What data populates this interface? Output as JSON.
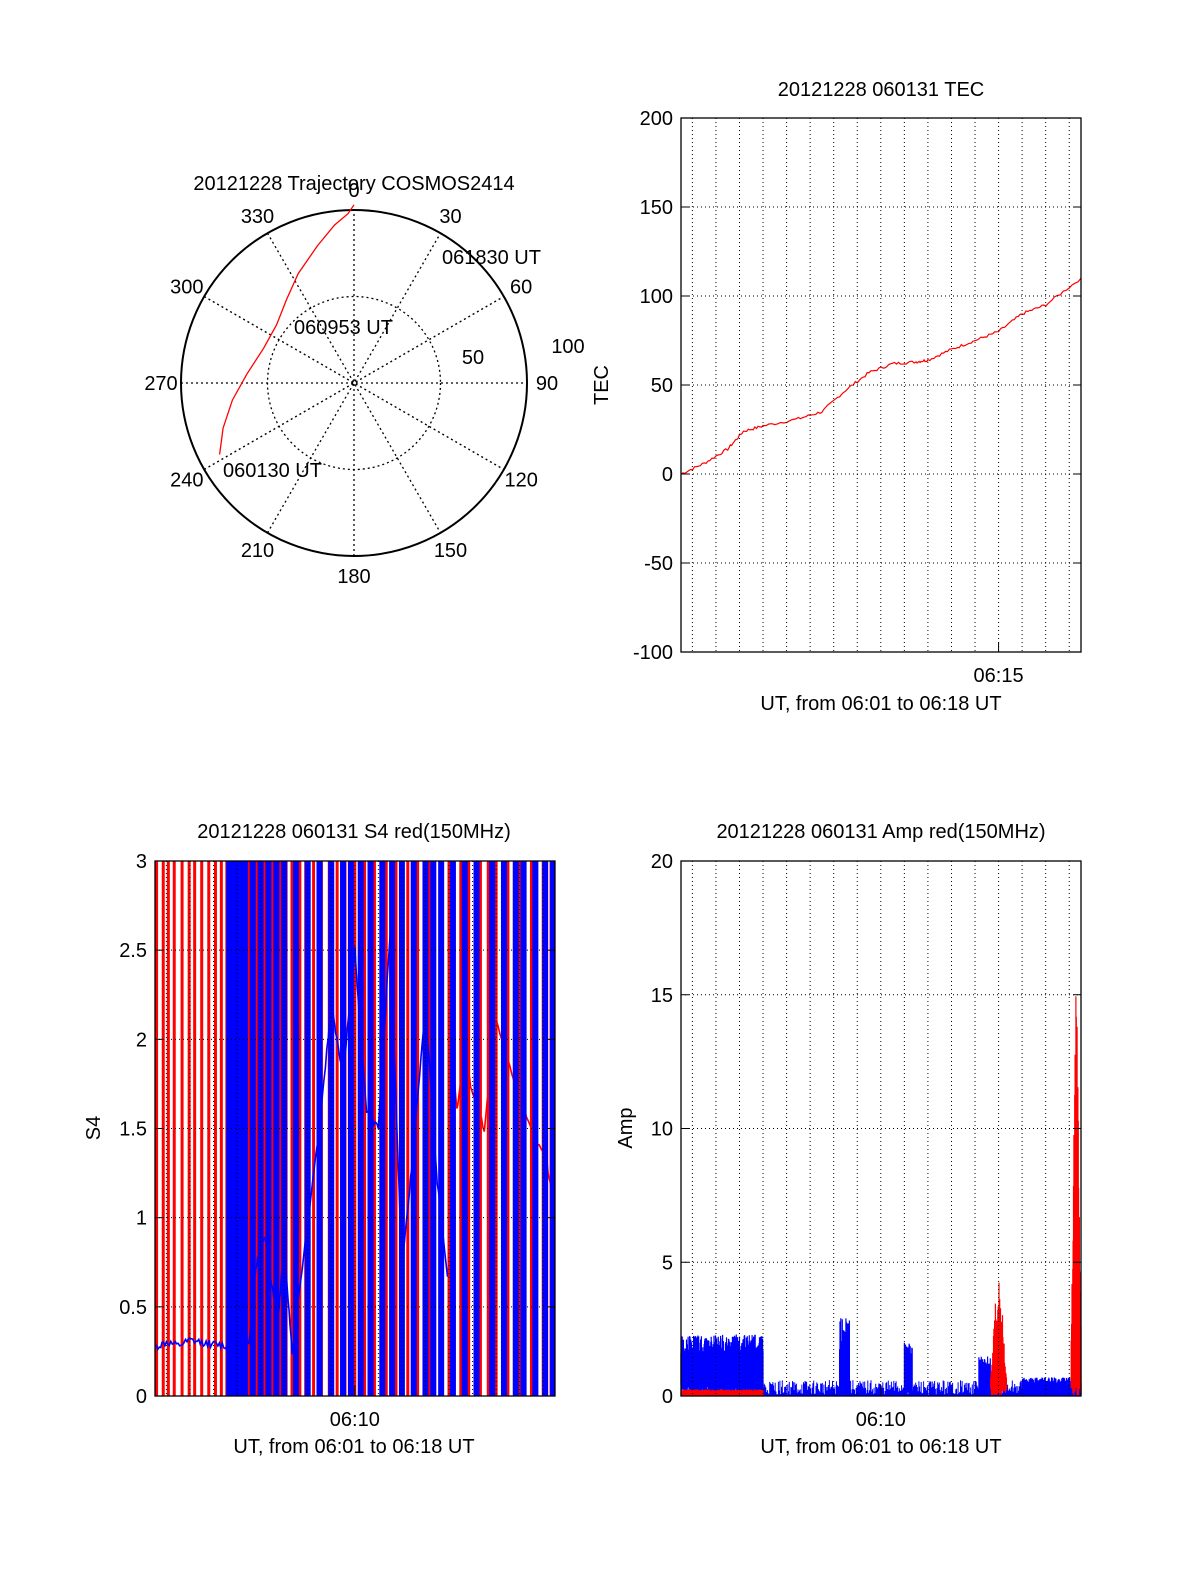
{
  "colors": {
    "red": "#ff0000",
    "blue": "#0000ff",
    "axis": "#000000"
  },
  "chart_data": [
    {
      "type": "polar-trajectory",
      "title": "20121228 Trajectory COSMOS2414",
      "azimuth_labels": [
        "0",
        "30",
        "60",
        "90",
        "120",
        "150",
        "180",
        "210",
        "240",
        "270",
        "300",
        "330"
      ],
      "radial_labels": [
        "50",
        "100"
      ],
      "rlim": [
        0,
        100
      ],
      "trajectory": [
        {
          "az": 242,
          "r": 88
        },
        {
          "az": 251,
          "r": 80
        },
        {
          "az": 262,
          "r": 71
        },
        {
          "az": 275,
          "r": 62
        },
        {
          "az": 291,
          "r": 56
        },
        {
          "az": 307,
          "r": 56
        },
        {
          "az": 321,
          "r": 62
        },
        {
          "az": 333,
          "r": 71
        },
        {
          "az": 345,
          "r": 82
        },
        {
          "az": 353,
          "r": 92
        },
        {
          "az": 358,
          "r": 98
        },
        {
          "az": 360,
          "r": 103
        }
      ],
      "annotations": [
        {
          "text": "061830 UT",
          "az": 26,
          "r": 100
        },
        {
          "text": "060953 UT",
          "az": 342,
          "r": 37
        },
        {
          "text": "060130 UT",
          "az": 244,
          "r": 78
        }
      ]
    },
    {
      "type": "line",
      "title": "20121228 060131 TEC",
      "ylabel": "TEC",
      "xlabel": "UT, from 06:01 to 06:18 UT",
      "xlim": [
        "06:01:31",
        "06:18:30"
      ],
      "ylim": [
        -100,
        200
      ],
      "yticks": [
        -100,
        -50,
        0,
        50,
        100,
        150,
        200
      ],
      "xtick_labels": [
        {
          "t": "06:15:00",
          "label": "06:15"
        }
      ],
      "grid": true,
      "series": [
        {
          "color": "#ff0000",
          "points": [
            [
              "06:01:31",
              0
            ],
            [
              "06:02:30",
              6
            ],
            [
              "06:03:30",
              14
            ],
            [
              "06:04:10",
              24
            ],
            [
              "06:05:00",
              27
            ],
            [
              "06:06:30",
              31
            ],
            [
              "06:07:30",
              35
            ],
            [
              "06:08:30",
              47
            ],
            [
              "06:09:30",
              57
            ],
            [
              "06:10:30",
              62
            ],
            [
              "06:11:30",
              63
            ],
            [
              "06:12:00",
              64
            ],
            [
              "06:13:00",
              70
            ],
            [
              "06:14:00",
              75
            ],
            [
              "06:15:00",
              80
            ],
            [
              "06:16:00",
              90
            ],
            [
              "06:17:00",
              95
            ],
            [
              "06:18:30",
              110
            ]
          ]
        }
      ]
    },
    {
      "type": "line",
      "title": "20121228 060131 S4 red(150MHz)",
      "ylabel": "S4",
      "xlabel": "UT, from 06:01 to 06:18 UT",
      "xlim": [
        "06:01:31",
        "06:18:30"
      ],
      "ylim": [
        0,
        3
      ],
      "yticks": [
        "0",
        "0.5",
        "1",
        "1.5",
        "2",
        "2.5",
        "3"
      ],
      "xtick_labels": [
        {
          "t": "06:10:00",
          "label": "06:10"
        }
      ],
      "grid": true,
      "series": [
        {
          "color": "#ff0000",
          "spikes": [
            "06:01:35",
            "06:01:52",
            "06:02:05",
            "06:02:20",
            "06:02:40",
            "06:02:58",
            "06:03:12",
            "06:03:30",
            "06:03:48",
            "06:04:05",
            "06:04:20",
            "06:04:34",
            "06:05:30",
            "06:05:50",
            "06:06:10",
            "06:06:30",
            "06:06:50",
            "06:07:05",
            "06:07:20",
            "06:07:40",
            "06:07:55",
            "06:08:15",
            "06:08:35",
            "06:08:55",
            "06:09:15",
            "06:09:35",
            "06:10:00",
            "06:10:25",
            "06:10:50",
            "06:11:20",
            "06:11:45",
            "06:12:15",
            "06:12:40",
            "06:13:10",
            "06:14:00",
            "06:14:30",
            "06:14:50",
            "06:15:20",
            "06:15:40",
            "06:16:00",
            "06:16:30",
            "06:17:00",
            "06:17:30",
            "06:18:00",
            "06:18:20"
          ],
          "points": [
            [
              "06:14:00",
              2.2
            ],
            [
              "06:14:20",
              1.6
            ],
            [
              "06:14:40",
              1.9
            ],
            [
              "06:15:00",
              1.7
            ],
            [
              "06:15:30",
              1.5
            ],
            [
              "06:16:00",
              2.1
            ],
            [
              "06:16:40",
              1.8
            ],
            [
              "06:17:30",
              1.5
            ],
            [
              "06:18:10",
              1.3
            ],
            [
              "06:18:30",
              1.0
            ]
          ]
        },
        {
          "color": "#0000ff",
          "spikes": [
            "06:04:40",
            "06:04:50",
            "06:05:00",
            "06:05:10",
            "06:05:20",
            "06:05:40",
            "06:06:00",
            "06:06:20",
            "06:06:40",
            "06:07:00",
            "06:07:30",
            "06:08:00",
            "06:08:30",
            "06:09:00",
            "06:09:30",
            "06:09:50",
            "06:10:15",
            "06:10:40",
            "06:11:10",
            "06:11:35",
            "06:12:00",
            "06:12:30",
            "06:13:00",
            "06:13:20",
            "06:13:40",
            "06:14:10",
            "06:14:40",
            "06:15:10",
            "06:15:50",
            "06:16:20",
            "06:16:50",
            "06:17:10",
            "06:17:40",
            "06:18:05",
            "06:18:25"
          ],
          "points": [
            [
              "06:01:31",
              0.27
            ],
            [
              "06:02:00",
              0.3
            ],
            [
              "06:02:30",
              0.28
            ],
            [
              "06:03:00",
              0.31
            ],
            [
              "06:03:30",
              0.3
            ],
            [
              "06:04:00",
              0.29
            ],
            [
              "06:04:30",
              0.28
            ],
            [
              "06:05:30",
              0.3
            ],
            [
              "06:05:50",
              0.75
            ],
            [
              "06:06:10",
              0.9
            ],
            [
              "06:06:30",
              0.6
            ],
            [
              "06:06:45",
              0.45
            ],
            [
              "06:07:00",
              0.85
            ],
            [
              "06:07:20",
              0.25
            ],
            [
              "06:08:30",
              1.5
            ],
            [
              "06:09:00",
              2.2
            ],
            [
              "06:09:30",
              1.8
            ],
            [
              "06:10:00",
              2.5
            ],
            [
              "06:10:30",
              1.6
            ],
            [
              "06:11:00",
              1.5
            ],
            [
              "06:11:30",
              2.6
            ],
            [
              "06:12:00",
              0.7
            ],
            [
              "06:12:30",
              1.4
            ],
            [
              "06:13:00",
              2.2
            ],
            [
              "06:13:30",
              1.2
            ],
            [
              "06:14:00",
              0.6
            ]
          ]
        }
      ]
    },
    {
      "type": "line",
      "title": "20121228 060131 Amp red(150MHz)",
      "ylabel": "Amp",
      "xlabel": "UT, from 06:01 to 06:18 UT",
      "xlim": [
        "06:01:31",
        "06:18:30"
      ],
      "ylim": [
        0,
        20
      ],
      "yticks": [
        0,
        5,
        10,
        15,
        20
      ],
      "xtick_labels": [
        {
          "t": "06:10:00",
          "label": "06:10"
        }
      ],
      "grid": true,
      "series": [
        {
          "color": "#0000ff",
          "bands": [
            {
              "from": "06:01:31",
              "to": "06:05:00",
              "low": 0.5,
              "high": 2.3
            },
            {
              "from": "06:08:15",
              "to": "06:08:40",
              "low": 0.1,
              "high": 3.0
            },
            {
              "from": "06:11:00",
              "to": "06:11:20",
              "low": 0.2,
              "high": 2.0
            },
            {
              "from": "06:14:10",
              "to": "06:14:40",
              "low": 0.2,
              "high": 1.5
            },
            {
              "from": "06:16:00",
              "to": "06:18:30",
              "low": 0.1,
              "high": 0.7
            }
          ],
          "noise_level": [
            0.05,
            0.6
          ]
        },
        {
          "color": "#ff0000",
          "bands": [
            {
              "from": "06:01:31",
              "to": "06:05:00",
              "low": 0.05,
              "high": 0.25
            },
            {
              "from": "06:14:40",
              "to": "06:15:20",
              "low": 0.3,
              "high": 4.3
            },
            {
              "from": "06:18:05",
              "to": "06:18:30",
              "low": 0.5,
              "high": 15.5
            }
          ]
        }
      ]
    }
  ]
}
